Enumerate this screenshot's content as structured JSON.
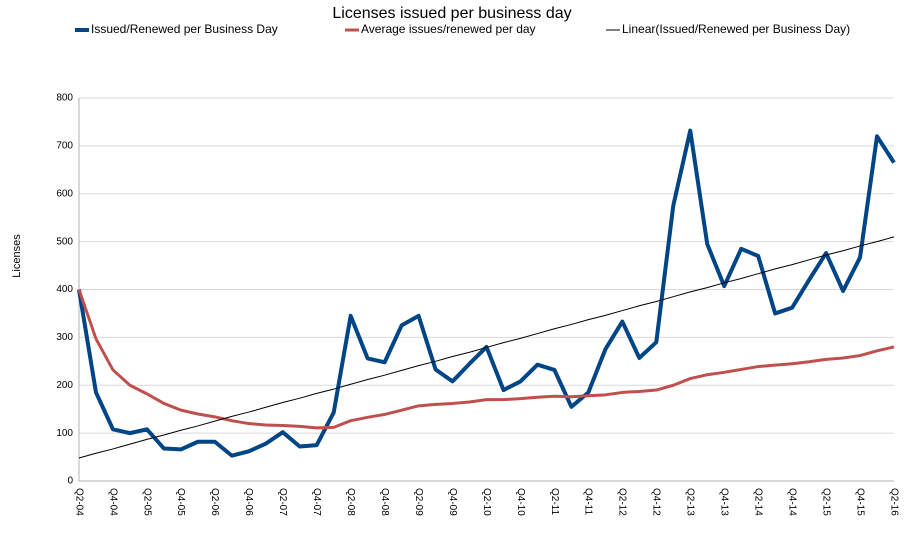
{
  "chart_data": {
    "type": "line",
    "title": "Licenses issued per business day",
    "y_label": "Licenses",
    "categories": [
      "Q2-04",
      null,
      "Q4-04",
      null,
      "Q2-05",
      null,
      "Q4-05",
      null,
      "Q2-06",
      null,
      "Q4-06",
      null,
      "Q2-07",
      null,
      "Q4-07",
      null,
      "Q2-08",
      null,
      "Q4-08",
      null,
      "Q2-09",
      null,
      "Q4-09",
      null,
      "Q2-10",
      null,
      "Q4-10",
      null,
      "Q2-11",
      null,
      "Q4-11",
      null,
      "Q2-12",
      null,
      "Q4-12",
      null,
      "Q2-13",
      null,
      "Q4-13",
      null,
      "Q2-14",
      null,
      "Q4-14",
      null,
      "Q2-15",
      null,
      "Q4-15",
      null,
      "Q2-16"
    ],
    "series": [
      {
        "name": "Issued/Renewed per Business Day",
        "color": "#004586",
        "width": 4,
        "values": [
          400,
          185,
          108,
          100,
          108,
          68,
          66,
          82,
          82,
          53,
          62,
          78,
          102,
          72,
          75,
          143,
          345,
          256,
          248,
          325,
          345,
          233,
          208,
          245,
          280,
          190,
          208,
          243,
          232,
          155,
          185,
          275,
          333,
          257,
          290,
          575,
          732,
          495,
          407,
          485,
          470,
          350,
          362,
          420,
          476,
          397,
          467,
          720,
          665
        ]
      },
      {
        "name": "Average issues/renewed per day",
        "color": "#c0504d",
        "width": 3,
        "values": [
          400,
          297,
          232,
          200,
          182,
          162,
          148,
          140,
          134,
          126,
          120,
          117,
          116,
          114,
          111,
          112,
          126,
          133,
          139,
          148,
          157,
          160,
          162,
          165,
          170,
          170,
          172,
          175,
          177,
          176,
          178,
          180,
          185,
          187,
          190,
          200,
          214,
          222,
          227,
          233,
          239,
          242,
          245,
          249,
          254,
          257,
          262,
          272,
          280
        ]
      },
      {
        "name": "Linear(Issued/Renewed per Business Day)",
        "color": "#000000",
        "width": 1,
        "values": [
          48,
          58,
          67,
          77,
          87,
          96,
          106,
          115,
          125,
          135,
          144,
          154,
          164,
          173,
          183,
          192,
          202,
          212,
          221,
          231,
          241,
          250,
          260,
          269,
          279,
          289,
          298,
          308,
          318,
          327,
          337,
          346,
          356,
          366,
          375,
          385,
          395,
          404,
          414,
          423,
          433,
          443,
          452,
          462,
          472,
          481,
          491,
          500,
          510
        ]
      }
    ],
    "ylim": [
      0,
      800
    ],
    "yticks": [
      0,
      100,
      200,
      300,
      400,
      500,
      600,
      700,
      800
    ],
    "grid": true,
    "legend": "top"
  }
}
